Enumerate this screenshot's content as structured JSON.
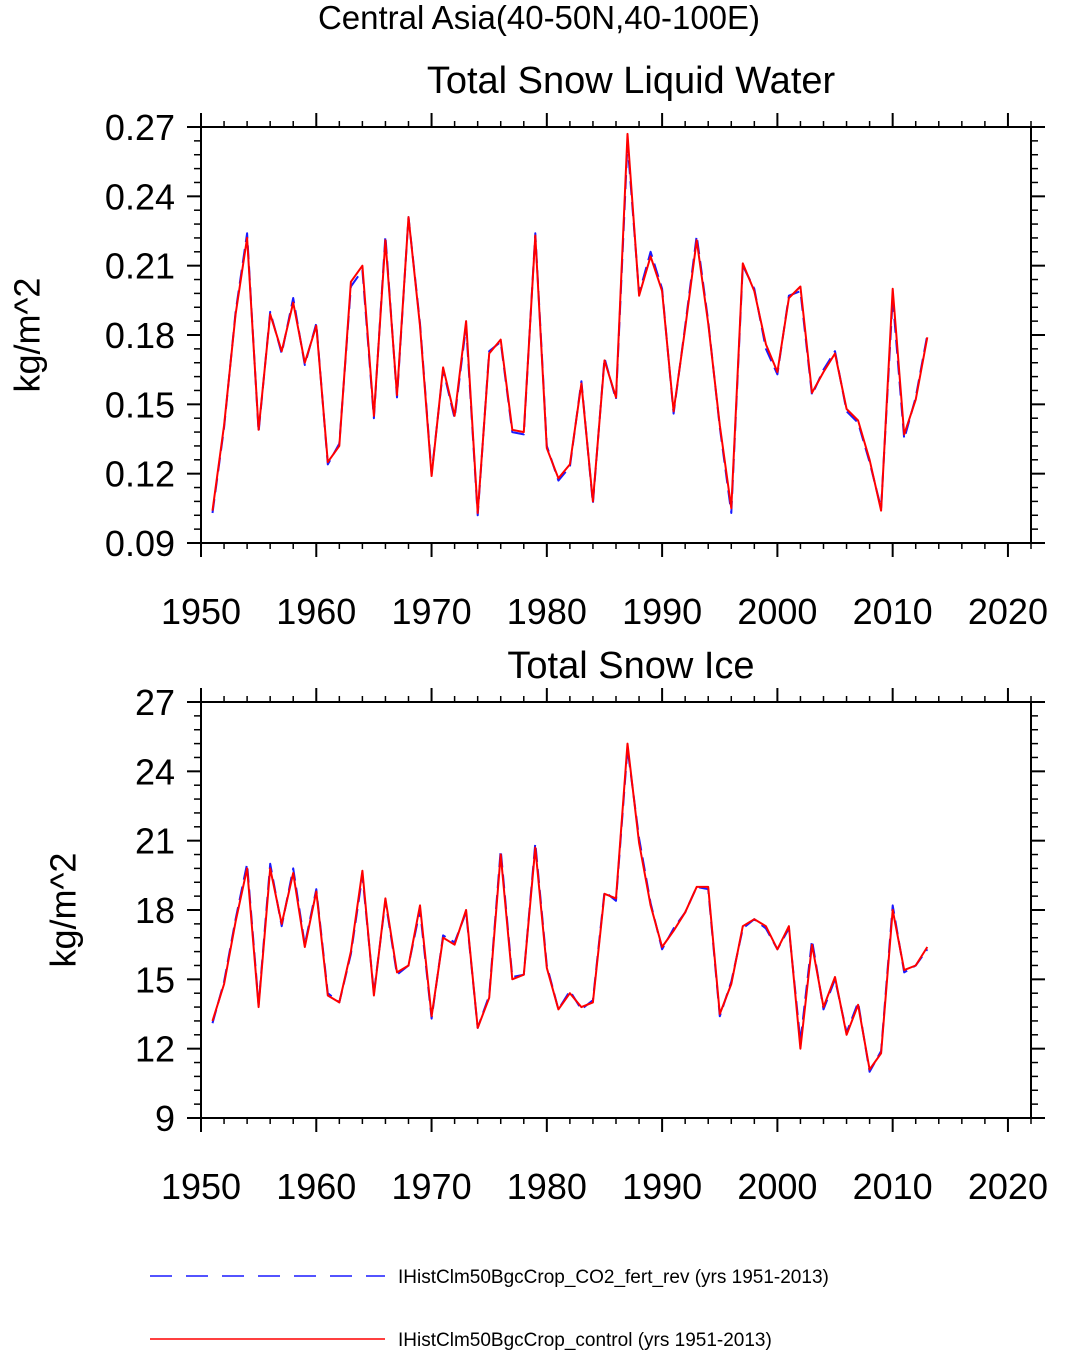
{
  "figure": {
    "suptitle": "Central Asia(40-50N,40-100E)"
  },
  "colors": {
    "series_dashed": "#1a1aff",
    "series_solid": "#ff0000",
    "axis": "#000000"
  },
  "legend": {
    "placement": "bottom",
    "items": [
      {
        "style": "dashed",
        "label": "IHistClm50BgcCrop_CO2_fert_rev (yrs 1951-2013)"
      },
      {
        "style": "solid",
        "label": "IHistClm50BgcCrop_control (yrs 1951-2013)"
      }
    ]
  },
  "chart_data": [
    {
      "type": "line",
      "title": "Total Snow Liquid Water",
      "xlabel": "",
      "ylabel": "kg/m^2",
      "xlim": [
        1950,
        2022
      ],
      "ylim": [
        0.09,
        0.27
      ],
      "xticks": [
        1950,
        1960,
        1970,
        1980,
        1990,
        2000,
        2010,
        2020
      ],
      "yticks": [
        0.09,
        0.12,
        0.15,
        0.18,
        0.21,
        0.24,
        0.27
      ],
      "ytick_labels": [
        "0.09",
        "0.12",
        "0.15",
        "0.18",
        "0.21",
        "0.24",
        "0.27"
      ],
      "grid": false,
      "x": [
        1951,
        1952,
        1953,
        1954,
        1955,
        1956,
        1957,
        1958,
        1959,
        1960,
        1961,
        1962,
        1963,
        1964,
        1965,
        1966,
        1967,
        1968,
        1969,
        1970,
        1971,
        1972,
        1973,
        1974,
        1975,
        1976,
        1977,
        1978,
        1979,
        1980,
        1981,
        1982,
        1983,
        1984,
        1985,
        1986,
        1987,
        1988,
        1989,
        1990,
        1991,
        1992,
        1993,
        1994,
        1995,
        1996,
        1997,
        1998,
        1999,
        2000,
        2001,
        2002,
        2003,
        2004,
        2005,
        2006,
        2007,
        2008,
        2009,
        2010,
        2011,
        2012,
        2013
      ],
      "series": [
        {
          "name": "IHistClm50BgcCrop_CO2_fert_rev (yrs 1951-2013)",
          "style": "dashed",
          "values": [
            0.103,
            0.14,
            0.19,
            0.224,
            0.138,
            0.19,
            0.172,
            0.196,
            0.167,
            0.185,
            0.124,
            0.133,
            0.201,
            0.208,
            0.144,
            0.223,
            0.153,
            0.231,
            0.185,
            0.12,
            0.165,
            0.144,
            0.184,
            0.102,
            0.173,
            0.177,
            0.138,
            0.137,
            0.224,
            0.132,
            0.117,
            0.123,
            0.16,
            0.107,
            0.17,
            0.152,
            0.263,
            0.198,
            0.216,
            0.2,
            0.146,
            0.184,
            0.223,
            0.186,
            0.14,
            0.103,
            0.21,
            0.2,
            0.174,
            0.163,
            0.197,
            0.199,
            0.154,
            0.165,
            0.173,
            0.147,
            0.142,
            0.125,
            0.105,
            0.196,
            0.135,
            0.153,
            0.18
          ]
        },
        {
          "name": "IHistClm50BgcCrop_control (yrs 1951-2013)",
          "style": "solid",
          "values": [
            0.104,
            0.141,
            0.189,
            0.222,
            0.139,
            0.189,
            0.173,
            0.194,
            0.168,
            0.184,
            0.125,
            0.132,
            0.203,
            0.21,
            0.145,
            0.221,
            0.154,
            0.231,
            0.184,
            0.119,
            0.166,
            0.145,
            0.186,
            0.103,
            0.172,
            0.178,
            0.139,
            0.138,
            0.223,
            0.131,
            0.118,
            0.124,
            0.159,
            0.108,
            0.169,
            0.153,
            0.267,
            0.197,
            0.214,
            0.199,
            0.147,
            0.183,
            0.221,
            0.185,
            0.141,
            0.105,
            0.211,
            0.199,
            0.176,
            0.164,
            0.196,
            0.201,
            0.155,
            0.164,
            0.172,
            0.148,
            0.143,
            0.126,
            0.104,
            0.2,
            0.137,
            0.152,
            0.179
          ]
        }
      ]
    },
    {
      "type": "line",
      "title": "Total Snow Ice",
      "xlabel": "",
      "ylabel": "kg/m^2",
      "xlim": [
        1950,
        2022
      ],
      "ylim": [
        9,
        27
      ],
      "xticks": [
        1950,
        1960,
        1970,
        1980,
        1990,
        2000,
        2010,
        2020
      ],
      "yticks": [
        9,
        12,
        15,
        18,
        21,
        24,
        27
      ],
      "ytick_labels": [
        "9",
        "12",
        "15",
        "18",
        "21",
        "24",
        "27"
      ],
      "grid": false,
      "x": [
        1951,
        1952,
        1953,
        1954,
        1955,
        1956,
        1957,
        1958,
        1959,
        1960,
        1961,
        1962,
        1963,
        1964,
        1965,
        1966,
        1967,
        1968,
        1969,
        1970,
        1971,
        1972,
        1973,
        1974,
        1975,
        1976,
        1977,
        1978,
        1979,
        1980,
        1981,
        1982,
        1983,
        1984,
        1985,
        1986,
        1987,
        1988,
        1989,
        1990,
        1991,
        1992,
        1993,
        1994,
        1995,
        1996,
        1997,
        1998,
        1999,
        2000,
        2001,
        2002,
        2003,
        2004,
        2005,
        2006,
        2007,
        2008,
        2009,
        2010,
        2011,
        2012,
        2013
      ],
      "series": [
        {
          "name": "IHistClm50BgcCrop_CO2_fert_rev (yrs 1951-2013)",
          "style": "dashed",
          "values": [
            13.1,
            14.9,
            17.6,
            20.0,
            13.9,
            20.0,
            17.3,
            19.8,
            16.5,
            18.9,
            14.4,
            14.0,
            16.1,
            19.5,
            14.4,
            18.4,
            15.2,
            15.6,
            18.0,
            13.3,
            16.9,
            16.6,
            17.9,
            12.9,
            14.3,
            20.6,
            15.1,
            15.2,
            20.9,
            15.6,
            13.7,
            14.5,
            13.7,
            14.1,
            18.8,
            18.4,
            25.0,
            21.1,
            18.3,
            16.3,
            17.2,
            17.9,
            19.0,
            18.9,
            13.4,
            14.9,
            17.2,
            17.6,
            17.2,
            16.3,
            17.2,
            12.3,
            16.7,
            13.7,
            15.0,
            12.7,
            14.0,
            11.0,
            11.9,
            18.2,
            15.3,
            15.6,
            16.3
          ]
        },
        {
          "name": "IHistClm50BgcCrop_control (yrs 1951-2013)",
          "style": "solid",
          "values": [
            13.2,
            14.8,
            17.5,
            19.8,
            13.8,
            19.8,
            17.4,
            19.6,
            16.4,
            18.8,
            14.3,
            14.0,
            16.2,
            19.7,
            14.3,
            18.5,
            15.3,
            15.6,
            18.2,
            13.4,
            16.8,
            16.5,
            18.0,
            12.9,
            14.2,
            20.4,
            15.0,
            15.2,
            20.7,
            15.5,
            13.7,
            14.4,
            13.8,
            14.0,
            18.7,
            18.5,
            25.2,
            20.9,
            18.2,
            16.4,
            17.1,
            17.9,
            19.0,
            19.0,
            13.5,
            14.8,
            17.3,
            17.6,
            17.3,
            16.3,
            17.3,
            12.0,
            16.5,
            13.8,
            15.1,
            12.6,
            13.9,
            11.1,
            11.8,
            18.0,
            15.4,
            15.6,
            16.4
          ]
        }
      ]
    }
  ]
}
